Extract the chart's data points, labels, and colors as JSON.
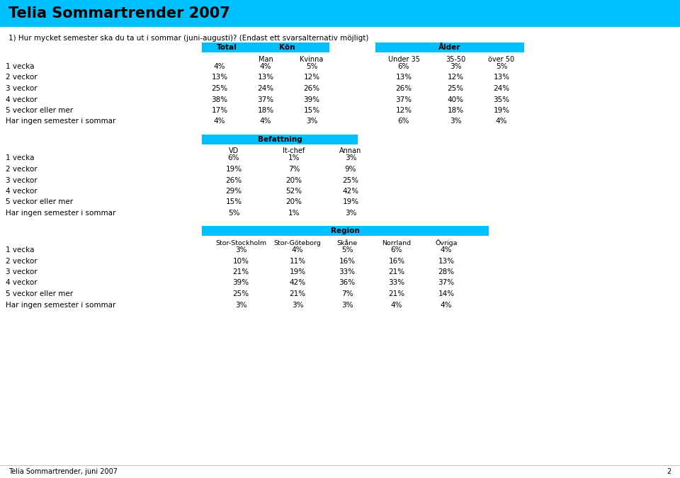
{
  "title": "Telia Sommartrender 2007",
  "title_bg": "#00BFFF",
  "question": "1) Hur mycket semester ska du ta ut i sommar (juni-augusti)? (Endast ett svarsalternativ möjligt)",
  "footer": "Telia Sommartrender, juni 2007",
  "page": "2",
  "rows": [
    "1 vecka",
    "2 veckor",
    "3 veckor",
    "4 veckor",
    "5 veckor eller mer",
    "Har ingen semester i sommar"
  ],
  "section1_data": [
    "4%",
    "13%",
    "25%",
    "38%",
    "17%",
    "4%"
  ],
  "section2_data": [
    [
      "4%",
      "5%"
    ],
    [
      "13%",
      "12%"
    ],
    [
      "24%",
      "26%"
    ],
    [
      "37%",
      "39%"
    ],
    [
      "18%",
      "15%"
    ],
    [
      "4%",
      "3%"
    ]
  ],
  "section3_data": [
    [
      "6%",
      "3%",
      "5%"
    ],
    [
      "13%",
      "12%",
      "13%"
    ],
    [
      "26%",
      "25%",
      "24%"
    ],
    [
      "37%",
      "40%",
      "35%"
    ],
    [
      "12%",
      "18%",
      "19%"
    ],
    [
      "6%",
      "3%",
      "4%"
    ]
  ],
  "section4_data": [
    [
      "6%",
      "1%",
      "3%"
    ],
    [
      "19%",
      "7%",
      "9%"
    ],
    [
      "26%",
      "20%",
      "25%"
    ],
    [
      "29%",
      "52%",
      "42%"
    ],
    [
      "15%",
      "20%",
      "19%"
    ],
    [
      "5%",
      "1%",
      "3%"
    ]
  ],
  "section5_data": [
    [
      "3%",
      "4%",
      "5%",
      "6%",
      "4%"
    ],
    [
      "10%",
      "11%",
      "16%",
      "16%",
      "13%"
    ],
    [
      "21%",
      "19%",
      "33%",
      "21%",
      "28%"
    ],
    [
      "39%",
      "42%",
      "36%",
      "33%",
      "37%"
    ],
    [
      "25%",
      "21%",
      "7%",
      "21%",
      "14%"
    ],
    [
      "3%",
      "3%",
      "3%",
      "4%",
      "4%"
    ]
  ],
  "header_bg": "#00BFFF",
  "bg_color": "#FFFFFF"
}
